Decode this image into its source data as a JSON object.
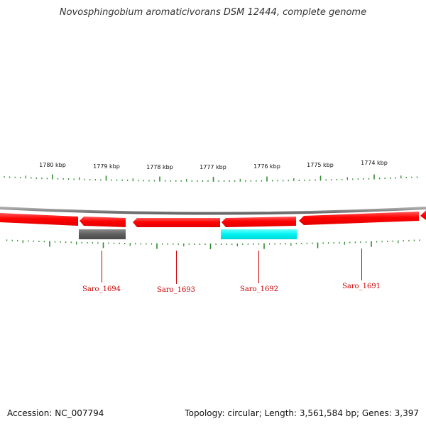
{
  "title": "Novosphingobium aromaticivorans DSM 12444, complete genome",
  "footer": {
    "accession": "Accession: NC_007794",
    "topology": "Topology: circular; Length: 3,561,584 bp; Genes: 3,397"
  },
  "colors": {
    "backbone": "#7f7f7f",
    "gene_red": "#ff0000",
    "gene_gray": "#666666",
    "gene_cyan": "#00ffff",
    "tick_green": "#2e8b2e",
    "label_red": "#cc0000"
  },
  "scale_labels": [
    "1780 kbp",
    "1779 kbp",
    "1778 kbp",
    "1777 kbp",
    "1776 kbp",
    "1775 kbp",
    "1774 kbp"
  ],
  "gene_labels": [
    "Saro_1694",
    "Saro_1693",
    "Saro_1692",
    "Saro_1691"
  ]
}
